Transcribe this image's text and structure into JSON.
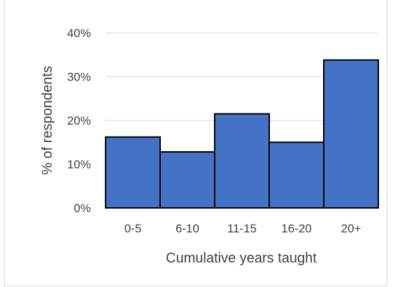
{
  "chart_data": {
    "type": "bar",
    "title": "",
    "xlabel": "Cumulative years taught",
    "ylabel": "% of respondents",
    "categories": [
      "0-5",
      "6-10",
      "11-15",
      "16-20",
      "20+"
    ],
    "values": [
      16.2,
      12.8,
      21.5,
      15.0,
      33.8
    ],
    "ylim": [
      0,
      40
    ],
    "yticks": [
      0,
      10,
      20,
      30,
      40
    ],
    "ytick_labels": [
      "0%",
      "10%",
      "20%",
      "30%",
      "40%"
    ],
    "grid": true,
    "legend": "none",
    "colors": {
      "bar_fill": "#4472c4",
      "bar_edge": "#000000",
      "gridline": "#d9d9d9",
      "text": "#404040"
    }
  }
}
